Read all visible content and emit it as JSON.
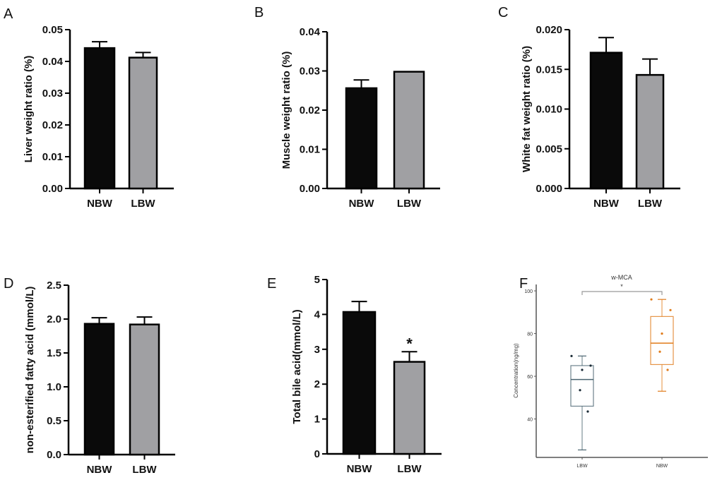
{
  "chart_data": [
    {
      "panel": "A",
      "type": "bar",
      "categories": [
        "NBW",
        "LBW"
      ],
      "values": [
        0.0442,
        0.0412
      ],
      "error": [
        0.002,
        0.0016
      ],
      "ylabel": "Liver weight ratio (%)",
      "ylim": [
        0,
        0.05
      ],
      "yticks": [
        "0.00",
        "0.01",
        "0.02",
        "0.03",
        "0.04",
        "0.05"
      ],
      "colors": [
        "#0a0a0a",
        "#a0a0a3"
      ],
      "annotations": [
        "",
        ""
      ]
    },
    {
      "panel": "B",
      "type": "bar",
      "categories": [
        "NBW",
        "LBW"
      ],
      "values": [
        0.0256,
        0.0298
      ],
      "error": [
        0.0021,
        0.0
      ],
      "ylabel": "Muscle weight ratio (%)",
      "ylim": [
        0,
        0.04
      ],
      "yticks": [
        "0.00",
        "0.01",
        "0.02",
        "0.03",
        "0.04"
      ],
      "colors": [
        "#0a0a0a",
        "#a0a0a3"
      ],
      "annotations": [
        "",
        ""
      ]
    },
    {
      "panel": "C",
      "type": "bar",
      "categories": [
        "NBW",
        "LBW"
      ],
      "values": [
        0.0171,
        0.0143
      ],
      "error": [
        0.0019,
        0.002
      ],
      "ylabel": "White fat weight ratio (%)",
      "ylim": [
        0,
        0.02
      ],
      "yticks": [
        "0.000",
        "0.005",
        "0.010",
        "0.015",
        "0.020"
      ],
      "colors": [
        "#0a0a0a",
        "#a0a0a3"
      ],
      "annotations": [
        "",
        ""
      ]
    },
    {
      "panel": "D",
      "type": "bar",
      "categories": [
        "NBW",
        "LBW"
      ],
      "values": [
        1.93,
        1.92
      ],
      "error": [
        0.09,
        0.11
      ],
      "ylabel": "non-esterified fatty acid (mmol/L)",
      "ylim": [
        0,
        2.5
      ],
      "yticks": [
        "0.0",
        "0.5",
        "1.0",
        "1.5",
        "2.0",
        "2.5"
      ],
      "colors": [
        "#0a0a0a",
        "#a0a0a3"
      ],
      "annotations": [
        "",
        ""
      ]
    },
    {
      "panel": "E",
      "type": "bar",
      "categories": [
        "NBW",
        "LBW"
      ],
      "values": [
        4.07,
        2.64
      ],
      "error": [
        0.3,
        0.29
      ],
      "ylabel": "Total bile acid(mmol/L)",
      "ylim": [
        0,
        5
      ],
      "yticks": [
        "0",
        "1",
        "2",
        "3",
        "4",
        "5"
      ],
      "colors": [
        "#0a0a0a",
        "#a0a0a3"
      ],
      "annotations": [
        "",
        "*"
      ]
    },
    {
      "panel": "F",
      "type": "box",
      "title": "w-MCA",
      "categories": [
        "LBW",
        "NBW"
      ],
      "ylabel": "Concentration(ng/mg)",
      "ylim": [
        22,
        103
      ],
      "yticks": [
        "40",
        "60",
        "80",
        "100"
      ],
      "boxes": [
        {
          "min": 25.5,
          "q1": 46,
          "median": 58.5,
          "q3": 65,
          "max": 69.5,
          "points": [
            69.5,
            65,
            63,
            53.5,
            43.5
          ],
          "color": "#4a6470"
        },
        {
          "min": 53,
          "q1": 65.5,
          "median": 75.5,
          "q3": 88,
          "max": 96,
          "points": [
            96,
            91,
            80,
            71.5,
            63
          ],
          "color": "#e07b1a"
        }
      ],
      "significance": "*"
    }
  ]
}
